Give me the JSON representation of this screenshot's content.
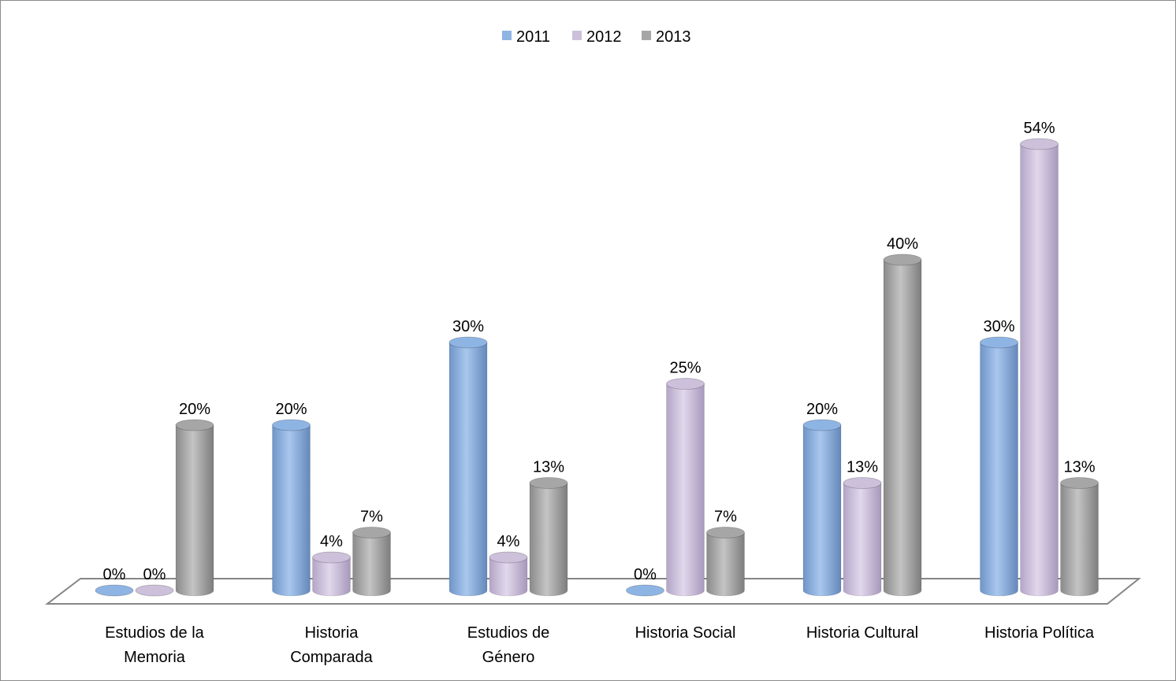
{
  "chart_data": {
    "type": "bar",
    "title": "",
    "xlabel": "",
    "ylabel": "",
    "categories": [
      [
        "Estudios de la",
        "Memoria"
      ],
      [
        "Historia",
        "Comparada"
      ],
      [
        "Estudios de",
        "Género"
      ],
      [
        "Historia Social"
      ],
      [
        "Historia Cultural"
      ],
      [
        "Historia Política"
      ]
    ],
    "series": [
      {
        "name": "2011",
        "color": "#8eb4e3",
        "values": [
          0,
          20,
          30,
          0,
          20,
          30
        ],
        "labels": [
          "0%",
          "20%",
          "30%",
          "0%",
          "20%",
          "30%"
        ]
      },
      {
        "name": "2012",
        "color": "#ccc0da",
        "values": [
          0,
          4,
          4,
          25,
          13,
          54
        ],
        "labels": [
          "0%",
          "4%",
          "4%",
          "25%",
          "13%",
          "54%"
        ]
      },
      {
        "name": "2013",
        "color": "#a6a6a6",
        "values": [
          20,
          7,
          13,
          7,
          40,
          13
        ],
        "labels": [
          "20%",
          "7%",
          "13%",
          "7%",
          "40%",
          "13%"
        ]
      }
    ],
    "legend_position": "top",
    "grid": false,
    "ylim": [
      0,
      60
    ],
    "style": "3d-cylinder"
  }
}
